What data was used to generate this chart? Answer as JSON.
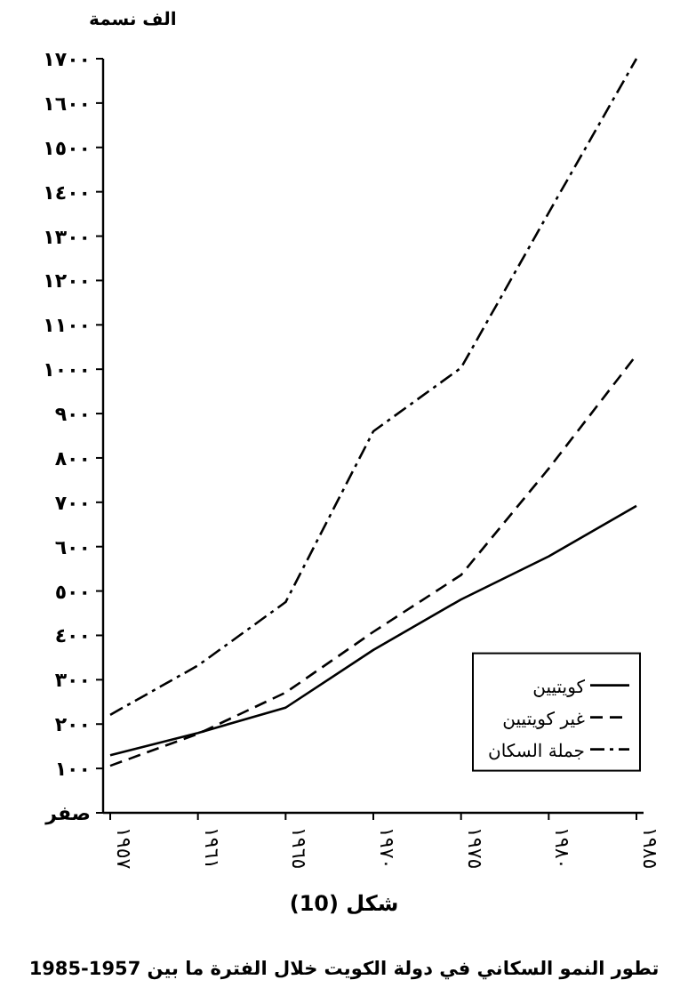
{
  "chart_data": {
    "type": "line",
    "title": "تطور النمو السكاني في دولة الكويت خلال الفترة ما بين 1957-1985",
    "ylabel": "الف نسمة",
    "annotations": [
      "شكل (10)"
    ],
    "categories": [
      "١٩٥٧",
      "١٩٦١",
      "١٩٦٥",
      "١٩٧٠",
      "١٩٧٥",
      "١٩٨٠",
      "١٩٨٥"
    ],
    "ylim": [
      0,
      1700
    ],
    "yticks": [
      {
        "value": 0,
        "label": "صفر"
      },
      {
        "value": 100,
        "label": "١٠٠"
      },
      {
        "value": 200,
        "label": "٢٠٠"
      },
      {
        "value": 300,
        "label": "٣٠٠"
      },
      {
        "value": 400,
        "label": "٤٠٠"
      },
      {
        "value": 500,
        "label": "٥٠٠"
      },
      {
        "value": 600,
        "label": "٦٠٠"
      },
      {
        "value": 700,
        "label": "٧٠٠"
      },
      {
        "value": 800,
        "label": "٨٠٠"
      },
      {
        "value": 900,
        "label": "٩٠٠"
      },
      {
        "value": 1000,
        "label": "١٠٠٠"
      },
      {
        "value": 1100,
        "label": "١١٠٠"
      },
      {
        "value": 1200,
        "label": "١٢٠٠"
      },
      {
        "value": 1300,
        "label": "١٣٠٠"
      },
      {
        "value": 1400,
        "label": "١٤٠٠"
      },
      {
        "value": 1500,
        "label": "١٥٠٠"
      },
      {
        "value": 1600,
        "label": "١٦٠٠"
      },
      {
        "value": 1700,
        "label": "١٧٠٠"
      }
    ],
    "grid": false,
    "legend": "bottom right",
    "series": [
      {
        "name": "كويتيين",
        "color": "#000000",
        "line_style": "solid",
        "values": [
          130,
          180,
          237,
          367,
          481,
          578,
          692
        ]
      },
      {
        "name": "غير كويتيين",
        "color": "#000000",
        "line_style": "dashed",
        "values": [
          106,
          178,
          271,
          408,
          536,
          776,
          1032
        ]
      },
      {
        "name": "جملة السكان",
        "color": "#000000",
        "line_style": "dashdot",
        "values": [
          221,
          332,
          475,
          860,
          1003,
          1353,
          1700
        ]
      }
    ]
  }
}
